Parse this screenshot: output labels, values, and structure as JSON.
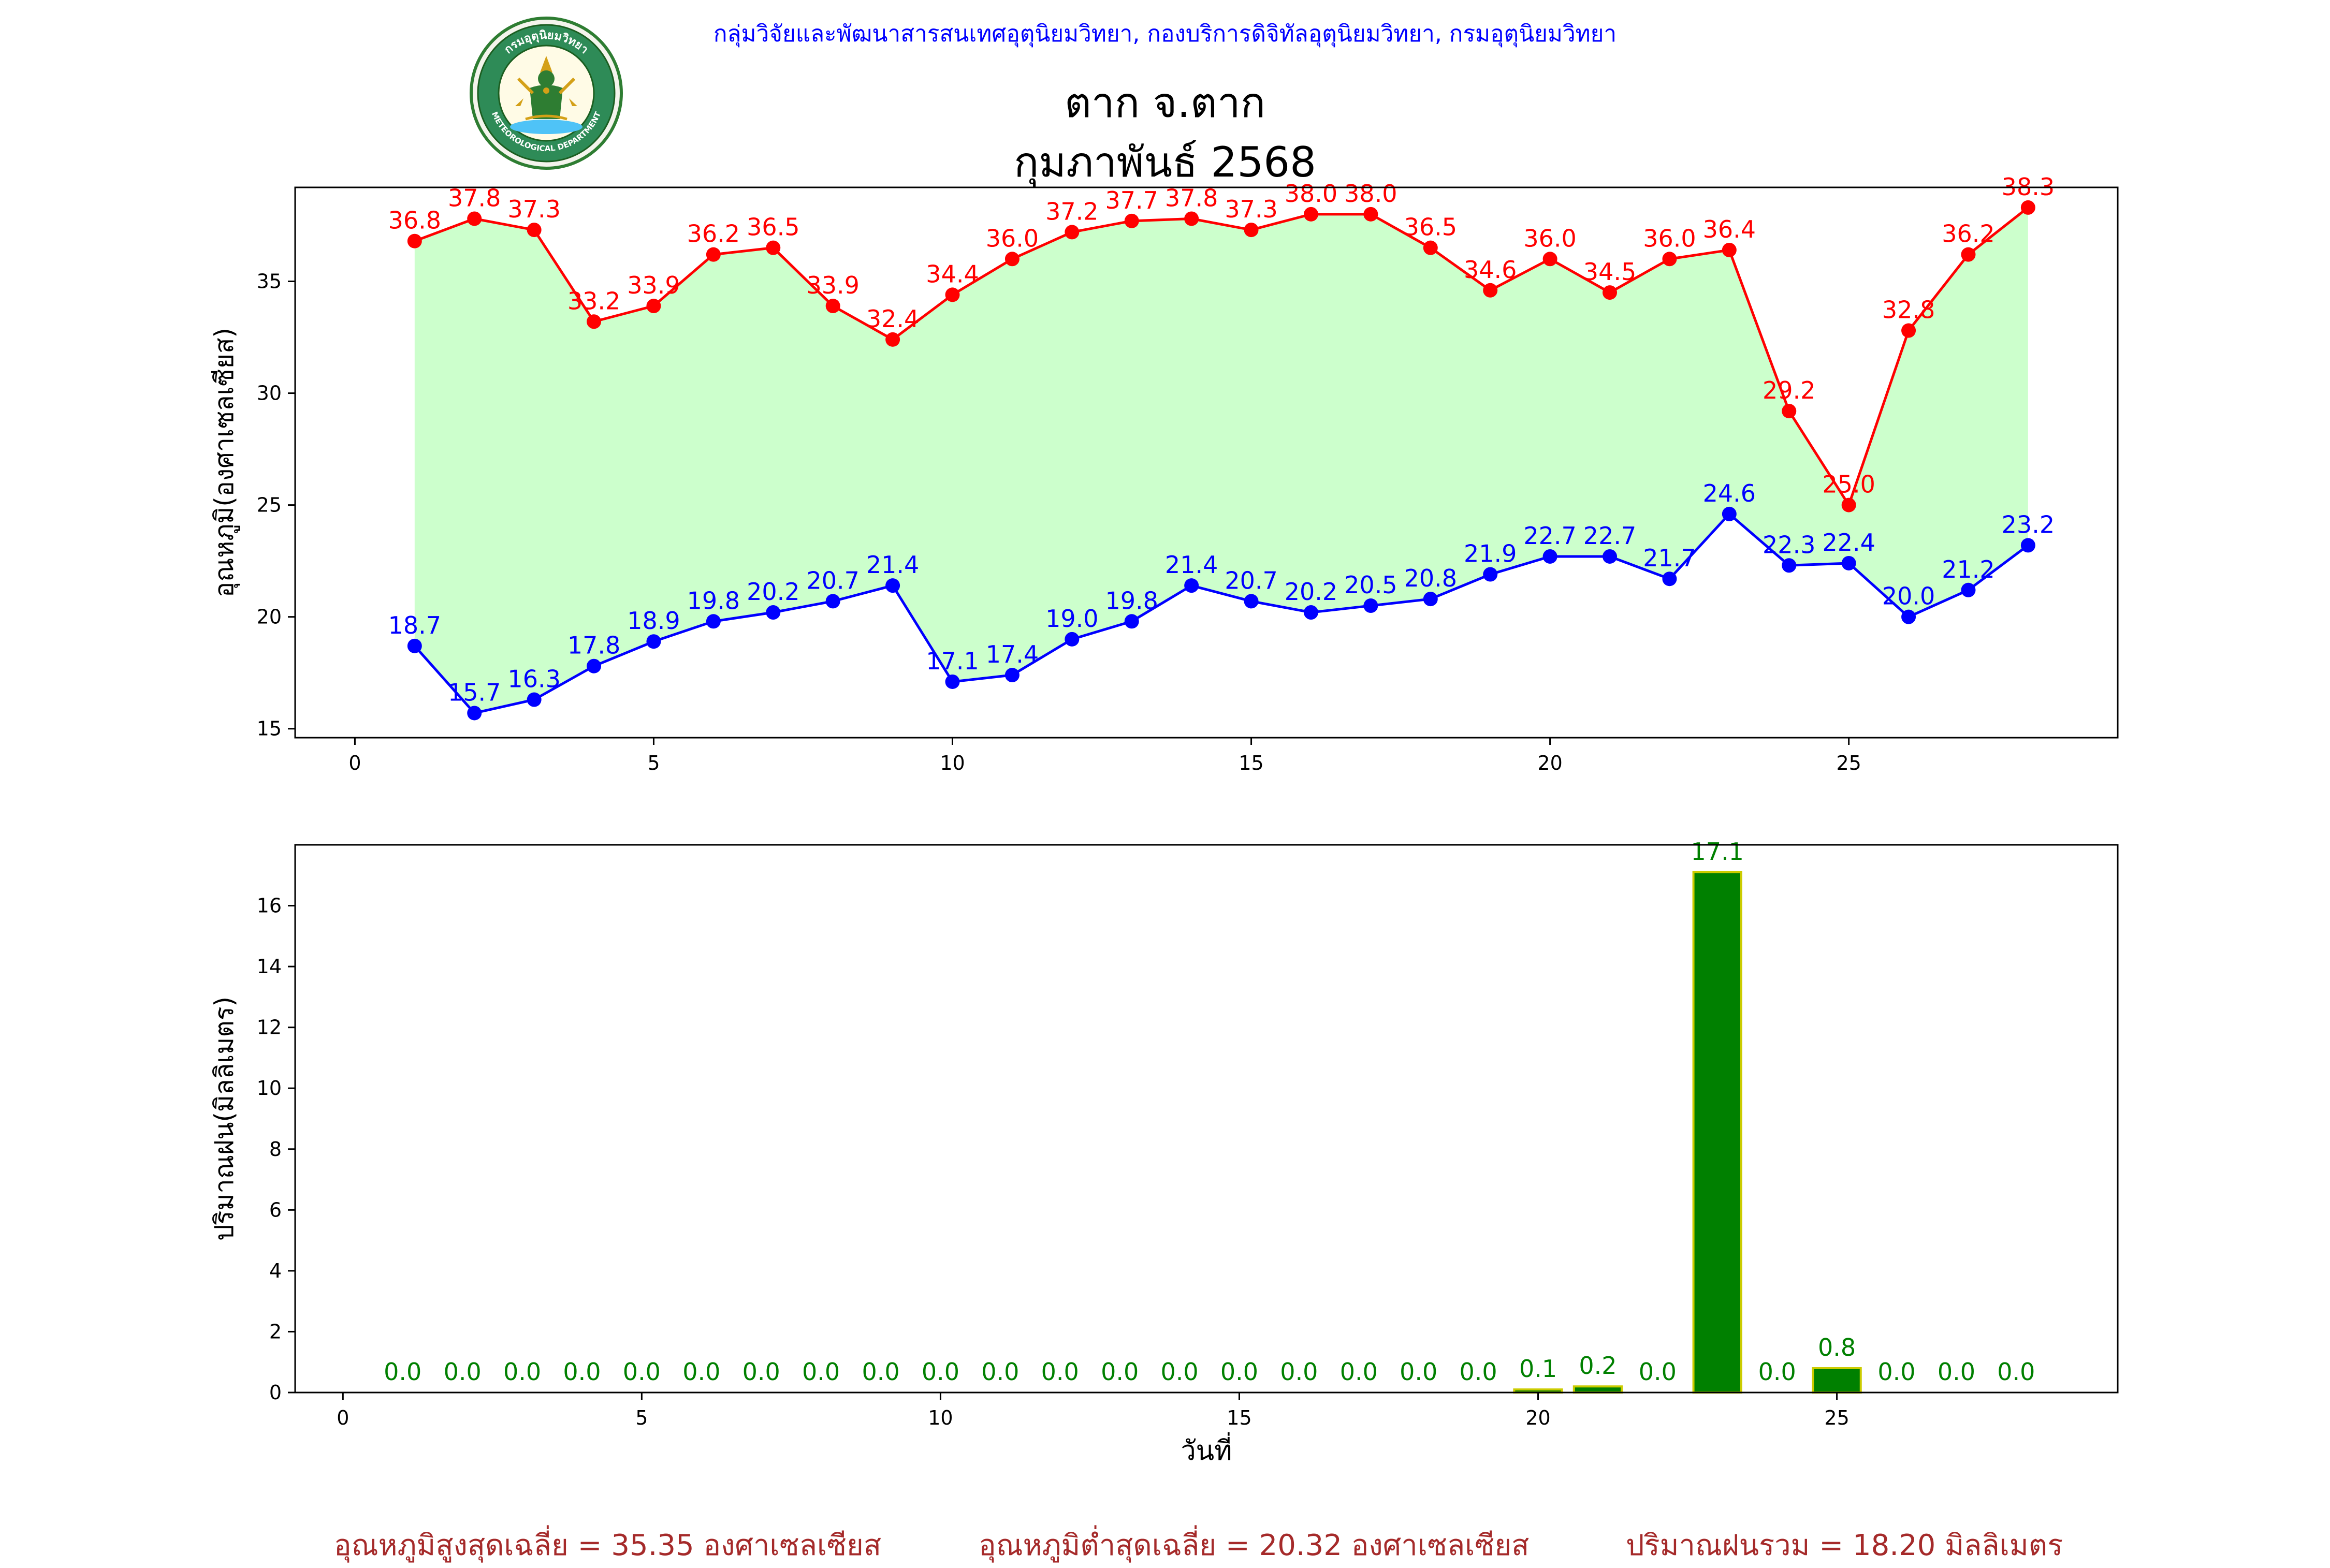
{
  "header": {
    "agency": "กลุ่มวิจัยและพัฒนาสารสนเทศอุตุนิยมวิทยา, กองบริการดิจิทัลอุตุนิยมวิทยา, กรมอุตุนิยมวิทยา",
    "station": "ตาก จ.ตาก",
    "period": "กุมภาพันธ์ 2568"
  },
  "logo": {
    "top_text": "กรมอุตุนิยมวิทยา",
    "bottom_text": "METEOROLOGICAL DEPARTMENT"
  },
  "colors": {
    "max_line": "#ff0000",
    "min_line": "#0000ff",
    "fill": "#ccffcc",
    "bar": "#008000",
    "bar_edge": "#cccc00",
    "footer": "#a52a2a",
    "agency": "#0000ff"
  },
  "chart_data": [
    {
      "type": "line",
      "ylabel": "อุณหภูมิ(องศาเซลเซียส)",
      "xlabel": "",
      "xlim": [
        -1,
        29.5
      ],
      "ylim": [
        14.6,
        39.2
      ],
      "xticks": [
        0,
        5,
        10,
        15,
        20,
        25
      ],
      "yticks": [
        15,
        20,
        25,
        30,
        35
      ],
      "grid": false,
      "x": [
        1,
        2,
        3,
        4,
        5,
        6,
        7,
        8,
        9,
        10,
        11,
        12,
        13,
        14,
        15,
        16,
        17,
        18,
        19,
        20,
        21,
        22,
        23,
        24,
        25,
        26,
        27,
        28
      ],
      "series": [
        {
          "values": [
            36.8,
            37.8,
            37.3,
            33.2,
            33.9,
            36.2,
            36.5,
            33.9,
            32.4,
            34.4,
            36.0,
            37.2,
            37.7,
            37.8,
            37.3,
            38.0,
            38.0,
            36.5,
            34.6,
            36.0,
            34.5,
            36.0,
            36.4,
            29.2,
            25.0,
            32.8,
            36.2,
            38.3
          ]
        },
        {
          "values": [
            18.7,
            15.7,
            16.3,
            17.8,
            18.9,
            19.8,
            20.2,
            20.7,
            21.4,
            17.1,
            17.4,
            19.0,
            19.8,
            21.4,
            20.7,
            20.2,
            20.5,
            20.8,
            21.9,
            22.7,
            22.7,
            21.7,
            24.6,
            22.3,
            22.4,
            20.0,
            21.2,
            23.2
          ]
        }
      ]
    },
    {
      "type": "bar",
      "ylabel": "ปริมาณฝน(มิลลิเมตร)",
      "xlabel": "วันที่",
      "xlim": [
        -0.8,
        29.7
      ],
      "ylim": [
        0,
        18.0
      ],
      "xticks": [
        0,
        5,
        10,
        15,
        20,
        25
      ],
      "yticks": [
        0,
        2,
        4,
        6,
        8,
        10,
        12,
        14,
        16
      ],
      "grid": false,
      "x": [
        1,
        2,
        3,
        4,
        5,
        6,
        7,
        8,
        9,
        10,
        11,
        12,
        13,
        14,
        15,
        16,
        17,
        18,
        19,
        20,
        21,
        22,
        23,
        24,
        25,
        26,
        27,
        28
      ],
      "values": [
        0.0,
        0.0,
        0.0,
        0.0,
        0.0,
        0.0,
        0.0,
        0.0,
        0.0,
        0.0,
        0.0,
        0.0,
        0.0,
        0.0,
        0.0,
        0.0,
        0.0,
        0.0,
        0.0,
        0.1,
        0.2,
        0.0,
        17.1,
        0.0,
        0.8,
        0.0,
        0.0,
        0.0
      ]
    }
  ],
  "footer": {
    "avg_max": "อุณหภูมิสูงสุดเฉลี่ย = 35.35 องศาเซลเซียส",
    "avg_min": "อุณหภูมิต่ำสุดเฉลี่ย = 20.32 องศาเซลเซียส",
    "total_rain": "ปริมาณฝนรวม = 18.20 มิลลิเมตร"
  }
}
